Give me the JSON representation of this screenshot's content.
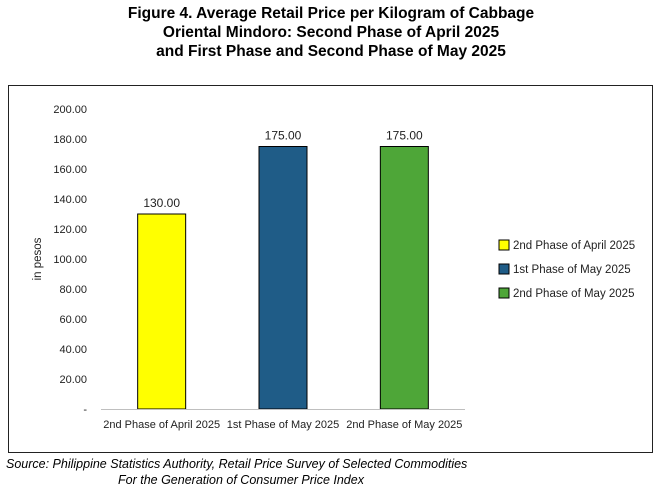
{
  "title": {
    "line1": "Figure 4. Average Retail Price per Kilogram of Cabbage",
    "line2": "Oriental Mindoro: Second Phase of April 2025",
    "line3": "and First Phase and Second Phase of May 2025"
  },
  "source": {
    "line1": "Source: Philippine Statistics Authority, Retail Price Survey of Selected Commodities",
    "line2": "For the Generation of Consumer Price Index"
  },
  "chart_data": {
    "type": "bar",
    "categories": [
      "2nd Phase of April 2025",
      "1st Phase of May 2025",
      "2nd Phase of May 2025"
    ],
    "values": [
      130,
      175,
      175
    ],
    "value_labels": [
      "130.00",
      "175.00",
      "175.00"
    ],
    "colors": [
      "#FFFF00",
      "#1F5C87",
      "#4EA638"
    ],
    "ylabel": "in pesos",
    "ylim": [
      0,
      200
    ],
    "yticks": [
      0,
      20,
      40,
      60,
      80,
      100,
      120,
      140,
      160,
      180,
      200
    ],
    "ytick_labels": [
      "-",
      "20.00",
      "40.00",
      "60.00",
      "80.00",
      "100.00",
      "120.00",
      "140.00",
      "160.00",
      "180.00",
      "200.00"
    ],
    "legend": [
      "2nd Phase of April 2025",
      "1st Phase of May 2025",
      "2nd Phase of May 2025"
    ],
    "legend_position": "right",
    "grid": false
  }
}
